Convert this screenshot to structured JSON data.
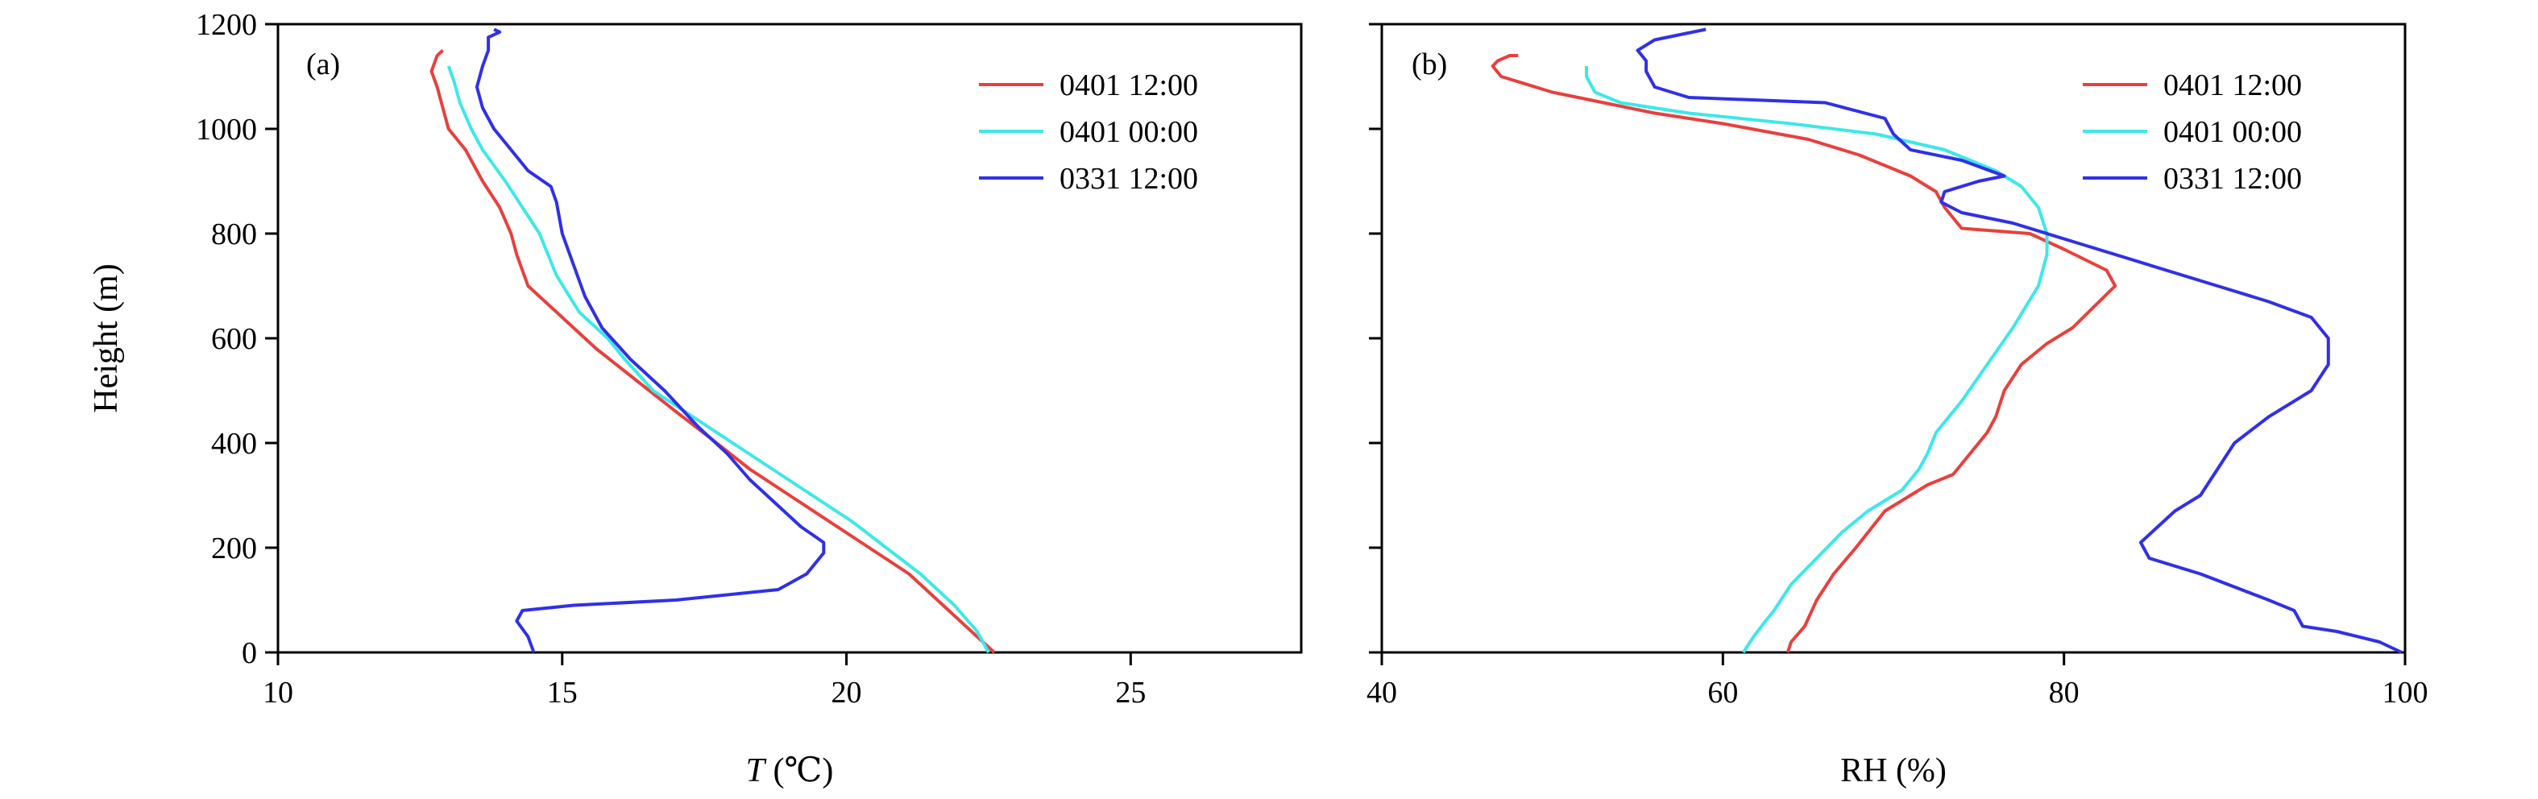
{
  "chart_data": [
    {
      "type": "line",
      "panel_label": "(a)",
      "xlabel_italic": "T",
      "xlabel_rest": " (℃)",
      "ylabel": "Height (m)",
      "xlim": [
        10,
        28
      ],
      "ylim": [
        0,
        1200
      ],
      "xticks": [
        10,
        15,
        20,
        25
      ],
      "yticks": [
        0,
        200,
        400,
        600,
        800,
        1000,
        1200
      ],
      "legend_position": "top-right",
      "series": [
        {
          "name": "0401 12:00",
          "color": "#e8403c",
          "points": [
            [
              22.6,
              0
            ],
            [
              22.2,
              40
            ],
            [
              21.8,
              80
            ],
            [
              21.1,
              150
            ],
            [
              20.4,
              200
            ],
            [
              19.7,
              250
            ],
            [
              19.0,
              300
            ],
            [
              18.3,
              350
            ],
            [
              17.6,
              410
            ],
            [
              17.0,
              460
            ],
            [
              16.3,
              520
            ],
            [
              15.6,
              580
            ],
            [
              15.0,
              640
            ],
            [
              14.4,
              700
            ],
            [
              14.2,
              760
            ],
            [
              14.1,
              800
            ],
            [
              13.9,
              850
            ],
            [
              13.6,
              900
            ],
            [
              13.3,
              960
            ],
            [
              13.0,
              1000
            ],
            [
              12.9,
              1040
            ],
            [
              12.8,
              1080
            ],
            [
              12.7,
              1110
            ],
            [
              12.8,
              1140
            ],
            [
              12.9,
              1150
            ]
          ]
        },
        {
          "name": "0401 00:00",
          "color": "#3de8e8",
          "points": [
            [
              22.5,
              0
            ],
            [
              22.3,
              40
            ],
            [
              21.9,
              90
            ],
            [
              21.3,
              150
            ],
            [
              20.7,
              200
            ],
            [
              20.1,
              250
            ],
            [
              19.4,
              300
            ],
            [
              18.7,
              350
            ],
            [
              18.0,
              400
            ],
            [
              17.3,
              450
            ],
            [
              16.6,
              500
            ],
            [
              16.1,
              560
            ],
            [
              15.8,
              600
            ],
            [
              15.3,
              650
            ],
            [
              14.9,
              720
            ],
            [
              14.6,
              800
            ],
            [
              14.3,
              850
            ],
            [
              14.0,
              900
            ],
            [
              13.6,
              960
            ],
            [
              13.4,
              1000
            ],
            [
              13.2,
              1050
            ],
            [
              13.1,
              1090
            ],
            [
              13.0,
              1120
            ]
          ]
        },
        {
          "name": "0331 12:00",
          "color": "#3030e8",
          "points": [
            [
              14.5,
              0
            ],
            [
              14.4,
              30
            ],
            [
              14.2,
              60
            ],
            [
              14.3,
              80
            ],
            [
              15.2,
              90
            ],
            [
              17.0,
              100
            ],
            [
              18.8,
              120
            ],
            [
              19.3,
              150
            ],
            [
              19.6,
              190
            ],
            [
              19.6,
              210
            ],
            [
              19.2,
              240
            ],
            [
              18.8,
              280
            ],
            [
              18.3,
              330
            ],
            [
              17.9,
              380
            ],
            [
              17.4,
              430
            ],
            [
              16.8,
              500
            ],
            [
              16.2,
              560
            ],
            [
              15.7,
              620
            ],
            [
              15.4,
              680
            ],
            [
              15.2,
              740
            ],
            [
              15.0,
              800
            ],
            [
              14.9,
              860
            ],
            [
              14.8,
              890
            ],
            [
              14.4,
              920
            ],
            [
              14.1,
              960
            ],
            [
              13.8,
              1000
            ],
            [
              13.6,
              1040
            ],
            [
              13.5,
              1080
            ],
            [
              13.6,
              1120
            ],
            [
              13.7,
              1150
            ],
            [
              13.7,
              1175
            ],
            [
              13.9,
              1185
            ],
            [
              13.8,
              1190
            ]
          ]
        }
      ]
    },
    {
      "type": "line",
      "panel_label": "(b)",
      "xlabel": "RH (%)",
      "xlim": [
        40,
        100
      ],
      "ylim": [
        0,
        1200
      ],
      "xticks": [
        40,
        60,
        80,
        100
      ],
      "yticks": [
        0,
        200,
        400,
        600,
        800,
        1000,
        1200
      ],
      "legend_position": "top-right",
      "series": [
        {
          "name": "0401 12:00",
          "color": "#e8403c",
          "points": [
            [
              63.8,
              0
            ],
            [
              64.0,
              20
            ],
            [
              64.8,
              50
            ],
            [
              65.5,
              100
            ],
            [
              66.5,
              150
            ],
            [
              67.8,
              200
            ],
            [
              69.5,
              270
            ],
            [
              72.0,
              320
            ],
            [
              73.5,
              340
            ],
            [
              74.5,
              380
            ],
            [
              75.5,
              420
            ],
            [
              76.0,
              450
            ],
            [
              76.5,
              500
            ],
            [
              77.5,
              550
            ],
            [
              79.0,
              590
            ],
            [
              80.5,
              620
            ],
            [
              83.0,
              700
            ],
            [
              82.5,
              730
            ],
            [
              80.0,
              770
            ],
            [
              78.0,
              800
            ],
            [
              74.0,
              810
            ],
            [
              73.0,
              850
            ],
            [
              72.5,
              880
            ],
            [
              71.0,
              910
            ],
            [
              68.0,
              950
            ],
            [
              65.0,
              980
            ],
            [
              60.0,
              1010
            ],
            [
              56.0,
              1030
            ],
            [
              53.0,
              1050
            ],
            [
              50.0,
              1070
            ],
            [
              47.0,
              1100
            ],
            [
              46.5,
              1120
            ],
            [
              46.8,
              1130
            ],
            [
              47.5,
              1140
            ],
            [
              48.0,
              1140
            ]
          ]
        },
        {
          "name": "0401 00:00",
          "color": "#3de8e8",
          "points": [
            [
              61.2,
              0
            ],
            [
              61.8,
              30
            ],
            [
              62.5,
              60
            ],
            [
              63.0,
              80
            ],
            [
              64.0,
              130
            ],
            [
              65.5,
              180
            ],
            [
              67.0,
              230
            ],
            [
              68.5,
              270
            ],
            [
              70.5,
              310
            ],
            [
              71.5,
              350
            ],
            [
              72.0,
              380
            ],
            [
              72.5,
              420
            ],
            [
              74.0,
              480
            ],
            [
              75.5,
              550
            ],
            [
              77.0,
              620
            ],
            [
              78.5,
              700
            ],
            [
              79.0,
              760
            ],
            [
              79.0,
              800
            ],
            [
              78.5,
              850
            ],
            [
              77.5,
              890
            ],
            [
              76.0,
              920
            ],
            [
              73.0,
              960
            ],
            [
              69.0,
              990
            ],
            [
              64.0,
              1010
            ],
            [
              58.0,
              1030
            ],
            [
              54.0,
              1050
            ],
            [
              52.5,
              1070
            ],
            [
              52.0,
              1100
            ],
            [
              52.0,
              1120
            ]
          ]
        },
        {
          "name": "0331 12:00",
          "color": "#3030e8",
          "points": [
            [
              99.8,
              0
            ],
            [
              98.5,
              20
            ],
            [
              96.0,
              40
            ],
            [
              94.0,
              50
            ],
            [
              93.5,
              80
            ],
            [
              92.0,
              100
            ],
            [
              88.0,
              150
            ],
            [
              85.0,
              180
            ],
            [
              84.5,
              210
            ],
            [
              85.5,
              240
            ],
            [
              86.5,
              270
            ],
            [
              88.0,
              300
            ],
            [
              89.0,
              350
            ],
            [
              90.0,
              400
            ],
            [
              92.0,
              450
            ],
            [
              94.5,
              500
            ],
            [
              95.5,
              550
            ],
            [
              95.5,
              600
            ],
            [
              94.5,
              640
            ],
            [
              92.0,
              670
            ],
            [
              89.0,
              700
            ],
            [
              85.0,
              740
            ],
            [
              81.0,
              780
            ],
            [
              77.0,
              820
            ],
            [
              74.0,
              840
            ],
            [
              72.8,
              860
            ],
            [
              73.0,
              880
            ],
            [
              75.0,
              900
            ],
            [
              76.5,
              910
            ],
            [
              74.0,
              940
            ],
            [
              71.0,
              960
            ],
            [
              70.0,
              990
            ],
            [
              69.5,
              1020
            ],
            [
              66.0,
              1050
            ],
            [
              58.0,
              1060
            ],
            [
              56.0,
              1080
            ],
            [
              55.5,
              1110
            ],
            [
              55.5,
              1130
            ],
            [
              55.0,
              1150
            ],
            [
              56.0,
              1170
            ],
            [
              57.5,
              1180
            ],
            [
              59.0,
              1190
            ]
          ]
        }
      ]
    }
  ]
}
